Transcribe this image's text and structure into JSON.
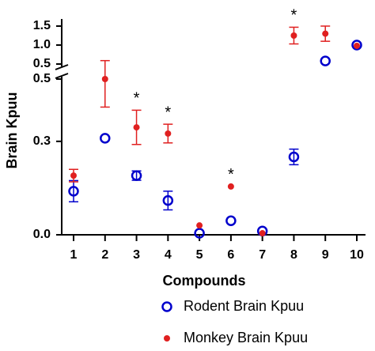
{
  "chart_data": {
    "type": "scatter",
    "x_label": "Compounds",
    "y_label": "Brain Kpuu",
    "categories": [
      "1",
      "2",
      "3",
      "4",
      "5",
      "6",
      "7",
      "8",
      "9",
      "10"
    ],
    "y_segments": [
      {
        "ylim": [
          0,
          0.5
        ],
        "yticks": [
          {
            "value": 0,
            "label": "0.0"
          },
          0.3,
          0.5
        ]
      },
      {
        "ylim": [
          0.5,
          1.5
        ],
        "yticks": [
          0.5,
          {
            "value": 1,
            "label": "1.0"
          },
          1.5
        ]
      }
    ],
    "series": [
      {
        "name": "Rodent Brain Kpuu",
        "color": "#0000cc",
        "marker": "open-circle",
        "values": [
          0.14,
          0.31,
          0.19,
          0.11,
          0.005,
          0.045,
          0.012,
          0.25,
          0.58,
          1.0
        ],
        "errors": [
          0.034,
          null,
          0.015,
          0.03,
          null,
          null,
          null,
          0.025,
          null,
          null
        ]
      },
      {
        "name": "Monkey Brain Kpuu",
        "color": "#e02020",
        "marker": "filled-circle",
        "values": [
          0.19,
          0.5,
          0.345,
          0.325,
          0.03,
          0.155,
          0.005,
          1.25,
          1.3,
          0.98
        ],
        "errors": [
          0.02,
          0.09,
          0.055,
          0.03,
          null,
          null,
          null,
          0.22,
          0.2,
          null
        ]
      }
    ],
    "significance_labels": [
      null,
      null,
      "*",
      "*",
      null,
      "*",
      null,
      "*",
      null,
      null
    ]
  }
}
